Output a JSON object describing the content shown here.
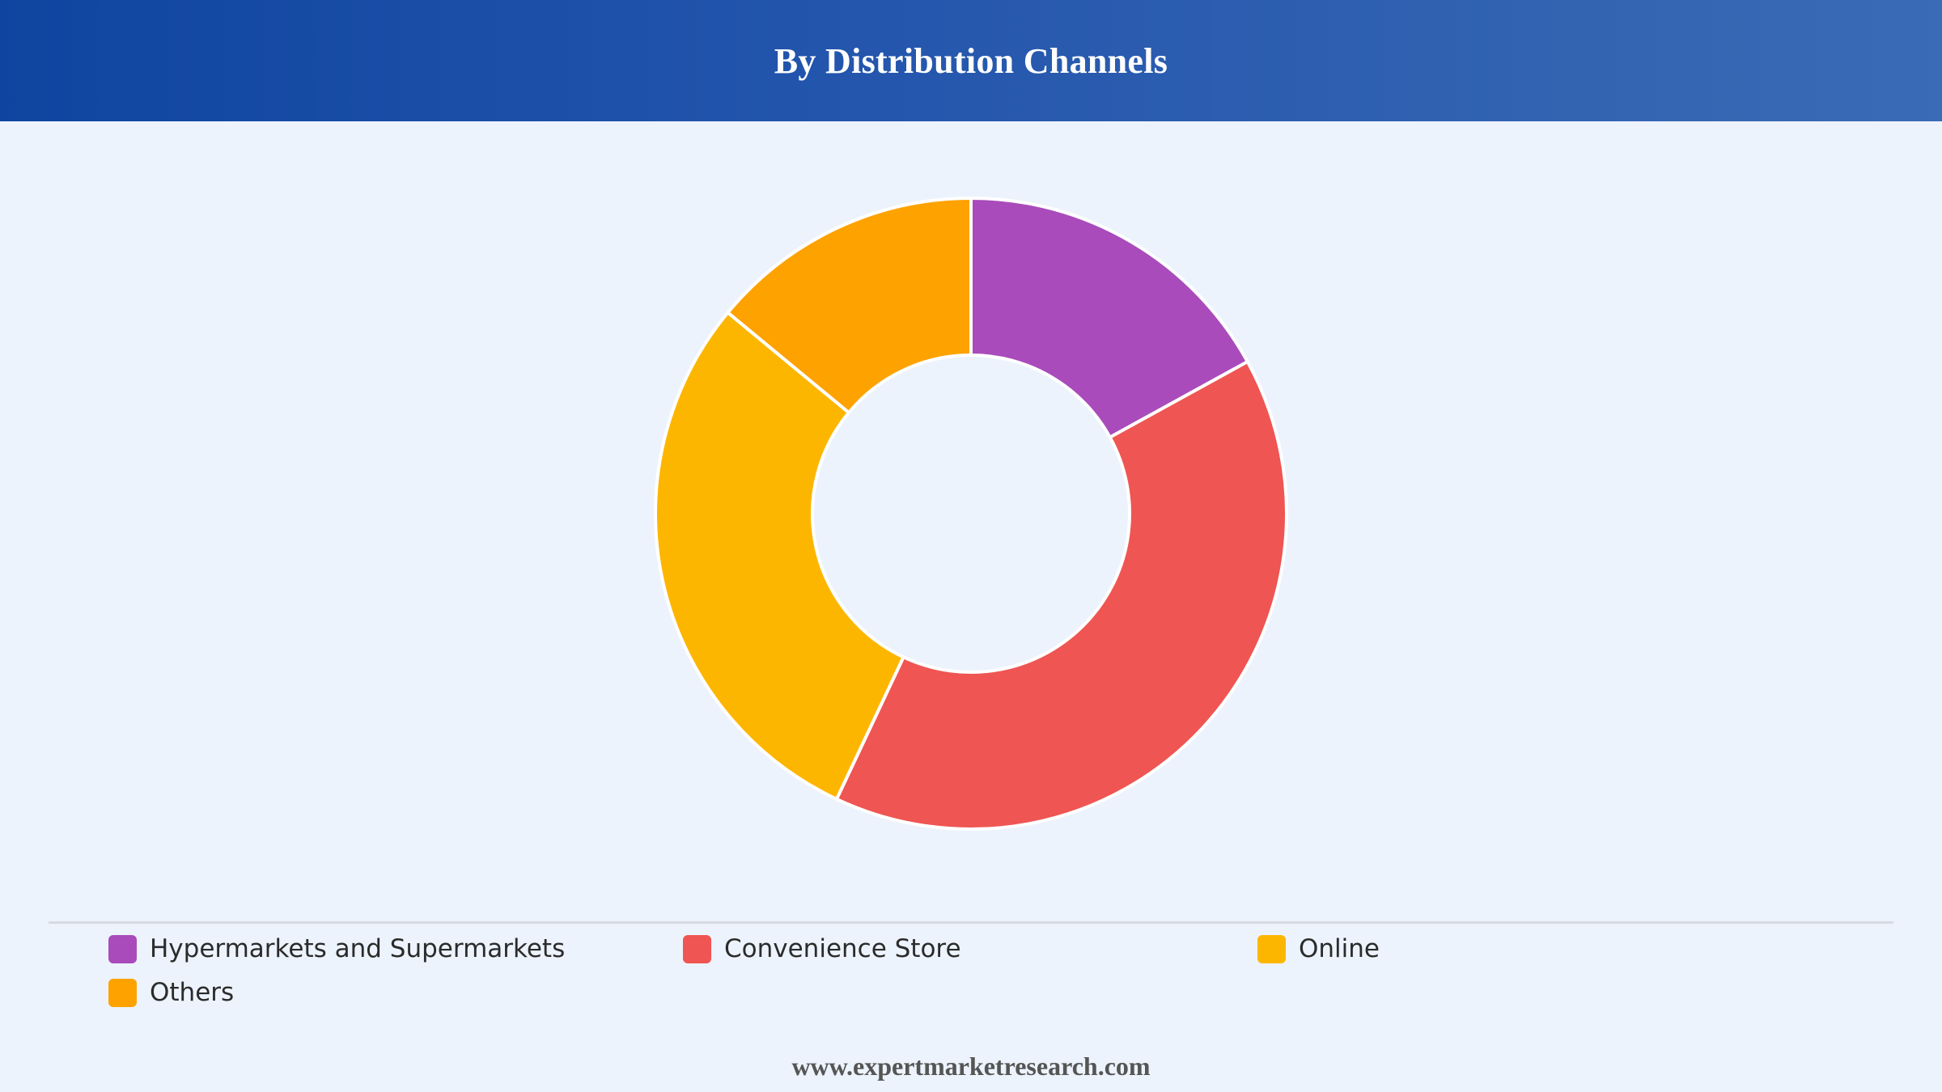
{
  "header": {
    "title": "By Distribution Channels"
  },
  "chart_data": {
    "type": "pie",
    "variant": "donut",
    "title": "By Distribution Channels",
    "categories": [
      "Hypermarkets and Supermarkets",
      "Convenience Store",
      "Online",
      "Others"
    ],
    "values": [
      17,
      40,
      29,
      14
    ],
    "unit": "%",
    "colors": [
      "#a94bbb",
      "#ef5552",
      "#fdb600",
      "#fea200"
    ],
    "legend_placement": "bottom"
  },
  "legend": {
    "items": [
      {
        "label": "Hypermarkets and Supermarkets",
        "color": "#a94bbb"
      },
      {
        "label": "Convenience Store",
        "color": "#ef5552"
      },
      {
        "label": "Online",
        "color": "#fdb600"
      },
      {
        "label": "Others",
        "color": "#fea200"
      }
    ]
  },
  "footer": {
    "source": "www.expertmarketresearch.com"
  }
}
